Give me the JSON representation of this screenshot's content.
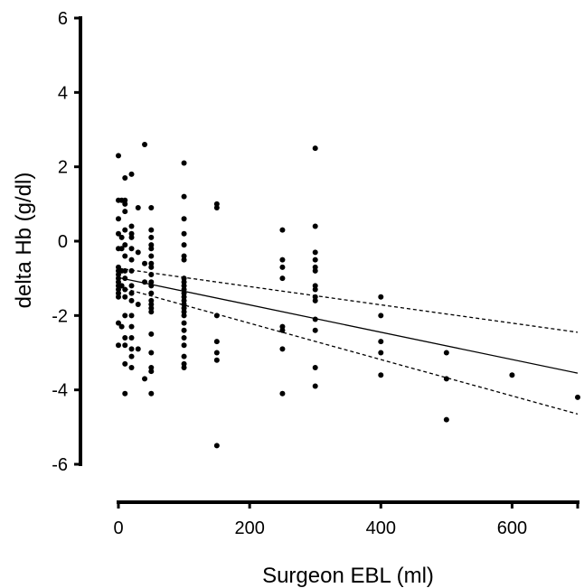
{
  "chart_data": {
    "type": "scatter",
    "title": "",
    "xlabel": "Surgeon EBL (ml)",
    "ylabel": "delta Hb (g/dl)",
    "xlim": [
      0,
      700
    ],
    "ylim": [
      -6,
      6
    ],
    "xticks": [
      0,
      200,
      400,
      600
    ],
    "yticks": [
      -6,
      -4,
      -2,
      0,
      2,
      4,
      6
    ],
    "grid": false,
    "legend": "none",
    "colors": {
      "points": "#000000",
      "lines": "#000000"
    },
    "series": [
      {
        "type": "scatter",
        "points": [
          [
            0,
            2.3
          ],
          [
            0,
            1.1
          ],
          [
            0,
            0.6
          ],
          [
            0,
            0.2
          ],
          [
            0,
            -0.2
          ],
          [
            0,
            -0.7
          ],
          [
            0,
            -0.8
          ],
          [
            0,
            -0.9
          ],
          [
            0,
            -1.0
          ],
          [
            0,
            -1.1
          ],
          [
            0,
            -1.2
          ],
          [
            0,
            -1.3
          ],
          [
            0,
            -1.4
          ],
          [
            0,
            -1.5
          ],
          [
            0,
            -2.2
          ],
          [
            0,
            -2.8
          ],
          [
            5,
            1.1
          ],
          [
            5,
            0.1
          ],
          [
            5,
            -0.2
          ],
          [
            5,
            -0.8
          ],
          [
            5,
            -1.2
          ],
          [
            5,
            -2.3
          ],
          [
            10,
            1.7
          ],
          [
            10,
            1.1
          ],
          [
            10,
            1.0
          ],
          [
            10,
            0.8
          ],
          [
            10,
            0.3
          ],
          [
            10,
            -0.1
          ],
          [
            10,
            -0.4
          ],
          [
            10,
            -0.8
          ],
          [
            10,
            -1.0
          ],
          [
            10,
            -1.3
          ],
          [
            10,
            -1.5
          ],
          [
            10,
            -2.0
          ],
          [
            10,
            -2.6
          ],
          [
            10,
            -2.8
          ],
          [
            10,
            -3.3
          ],
          [
            10,
            -4.1
          ],
          [
            20,
            1.8
          ],
          [
            20,
            0.4
          ],
          [
            20,
            0.2
          ],
          [
            20,
            0.1
          ],
          [
            20,
            -0.2
          ],
          [
            20,
            -0.5
          ],
          [
            20,
            -0.8
          ],
          [
            20,
            -1.2
          ],
          [
            20,
            -1.4
          ],
          [
            20,
            -1.6
          ],
          [
            20,
            -2.0
          ],
          [
            20,
            -2.3
          ],
          [
            20,
            -2.6
          ],
          [
            20,
            -2.9
          ],
          [
            20,
            -3.1
          ],
          [
            20,
            -3.4
          ],
          [
            30,
            0.9
          ],
          [
            30,
            -0.3
          ],
          [
            30,
            -1.7
          ],
          [
            30,
            -2.9
          ],
          [
            40,
            2.6
          ],
          [
            40,
            -0.6
          ],
          [
            40,
            -1.1
          ],
          [
            40,
            -3.7
          ],
          [
            50,
            0.9
          ],
          [
            50,
            0.3
          ],
          [
            50,
            0.1
          ],
          [
            50,
            -0.1
          ],
          [
            50,
            -0.2
          ],
          [
            50,
            -0.4
          ],
          [
            50,
            -0.6
          ],
          [
            50,
            -0.7
          ],
          [
            50,
            -0.9
          ],
          [
            50,
            -1.1
          ],
          [
            50,
            -1.2
          ],
          [
            50,
            -1.4
          ],
          [
            50,
            -1.6
          ],
          [
            50,
            -1.7
          ],
          [
            50,
            -1.8
          ],
          [
            50,
            -1.9
          ],
          [
            50,
            -2.5
          ],
          [
            50,
            -3.0
          ],
          [
            50,
            -3.4
          ],
          [
            50,
            -3.5
          ],
          [
            50,
            -4.1
          ],
          [
            100,
            2.1
          ],
          [
            100,
            1.2
          ],
          [
            100,
            0.6
          ],
          [
            100,
            0.2
          ],
          [
            100,
            -0.1
          ],
          [
            100,
            -0.4
          ],
          [
            100,
            -0.5
          ],
          [
            100,
            -1.0
          ],
          [
            100,
            -1.1
          ],
          [
            100,
            -1.2
          ],
          [
            100,
            -1.3
          ],
          [
            100,
            -1.4
          ],
          [
            100,
            -1.5
          ],
          [
            100,
            -1.6
          ],
          [
            100,
            -1.7
          ],
          [
            100,
            -1.8
          ],
          [
            100,
            -1.9
          ],
          [
            100,
            -2.0
          ],
          [
            100,
            -2.2
          ],
          [
            100,
            -2.4
          ],
          [
            100,
            -2.6
          ],
          [
            100,
            -2.8
          ],
          [
            100,
            -3.1
          ],
          [
            100,
            -3.3
          ],
          [
            100,
            -3.4
          ],
          [
            150,
            1.0
          ],
          [
            150,
            0.9
          ],
          [
            150,
            -2.0
          ],
          [
            150,
            -2.7
          ],
          [
            150,
            -3.0
          ],
          [
            150,
            -3.2
          ],
          [
            150,
            -5.5
          ],
          [
            250,
            0.3
          ],
          [
            250,
            -0.5
          ],
          [
            250,
            -0.7
          ],
          [
            250,
            -1.0
          ],
          [
            250,
            -2.3
          ],
          [
            250,
            -2.4
          ],
          [
            250,
            -2.9
          ],
          [
            250,
            -4.1
          ],
          [
            300,
            2.5
          ],
          [
            300,
            0.4
          ],
          [
            300,
            -0.3
          ],
          [
            300,
            -0.5
          ],
          [
            300,
            -0.7
          ],
          [
            300,
            -0.8
          ],
          [
            300,
            -1.2
          ],
          [
            300,
            -1.3
          ],
          [
            300,
            -1.5
          ],
          [
            300,
            -1.6
          ],
          [
            300,
            -2.1
          ],
          [
            300,
            -2.4
          ],
          [
            300,
            -3.4
          ],
          [
            300,
            -3.9
          ],
          [
            400,
            -1.5
          ],
          [
            400,
            -2.0
          ],
          [
            400,
            -2.7
          ],
          [
            400,
            -3.0
          ],
          [
            400,
            -3.6
          ],
          [
            500,
            -3.0
          ],
          [
            500,
            -3.7
          ],
          [
            500,
            -4.8
          ],
          [
            600,
            -3.6
          ],
          [
            700,
            -4.2
          ]
        ]
      },
      {
        "type": "line",
        "style": "solid",
        "x": [
          0,
          700
        ],
        "y": [
          -0.98,
          -3.55
        ]
      },
      {
        "type": "line",
        "style": "dashed",
        "x": [
          0,
          700
        ],
        "y": [
          -0.73,
          -2.45
        ]
      },
      {
        "type": "line",
        "style": "dashed",
        "x": [
          0,
          700
        ],
        "y": [
          -1.23,
          -4.65
        ]
      }
    ]
  }
}
